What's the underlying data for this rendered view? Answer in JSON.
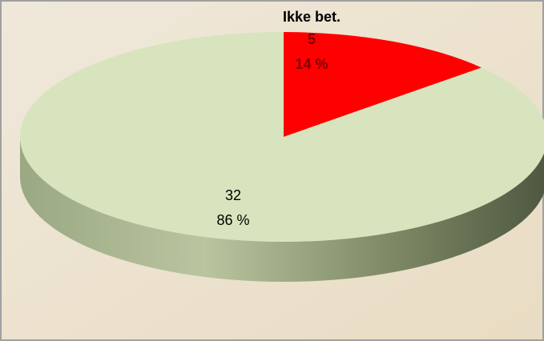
{
  "chart_data": {
    "type": "pie3d",
    "categories": [
      "Ikke bet.",
      null
    ],
    "values": [
      5,
      32
    ],
    "percents": [
      14,
      86
    ],
    "percent_labels": [
      "14 %",
      "86 %"
    ],
    "colors": [
      "#ff0000",
      "#d7e4bd"
    ]
  }
}
